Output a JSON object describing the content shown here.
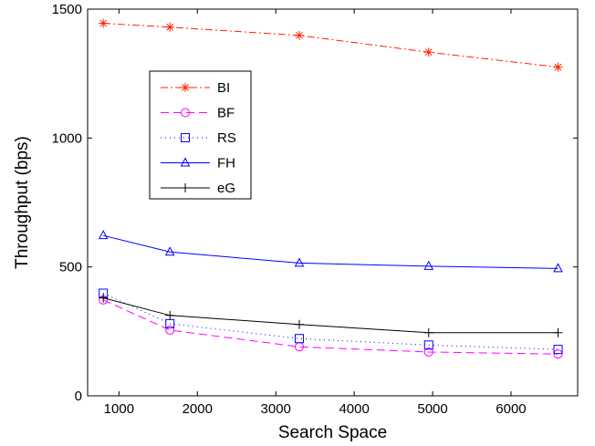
{
  "chart_data": {
    "type": "line",
    "xlabel": "Search Space",
    "ylabel": "Throughput (bps)",
    "xlim": [
      600,
      6850
    ],
    "ylim": [
      0,
      1500
    ],
    "xticks": [
      1000,
      2000,
      3000,
      4000,
      5000,
      6000
    ],
    "yticks": [
      0,
      500,
      1000,
      1500
    ],
    "grid": false,
    "legend_position": "upper-left",
    "x": [
      800,
      1650,
      3300,
      4950,
      6600
    ],
    "series": [
      {
        "name": "BI",
        "values": [
          1445,
          1430,
          1398,
          1333,
          1275
        ],
        "color": "#ff2200",
        "dash": "8,3,2,3",
        "marker": "asterisk"
      },
      {
        "name": "BF",
        "values": [
          372,
          255,
          190,
          170,
          162
        ],
        "color": "#ff00ff",
        "dash": "9,5",
        "marker": "circle"
      },
      {
        "name": "RS",
        "values": [
          398,
          280,
          222,
          197,
          180
        ],
        "color": "#0000ff",
        "dash": "1,4",
        "marker": "square"
      },
      {
        "name": "FH",
        "values": [
          622,
          558,
          515,
          503,
          494
        ],
        "color": "#0000ff",
        "dash": "",
        "marker": "triangle"
      },
      {
        "name": "eG",
        "values": [
          380,
          312,
          277,
          245,
          245
        ],
        "color": "#000000",
        "dash": "",
        "marker": "plus"
      }
    ]
  }
}
